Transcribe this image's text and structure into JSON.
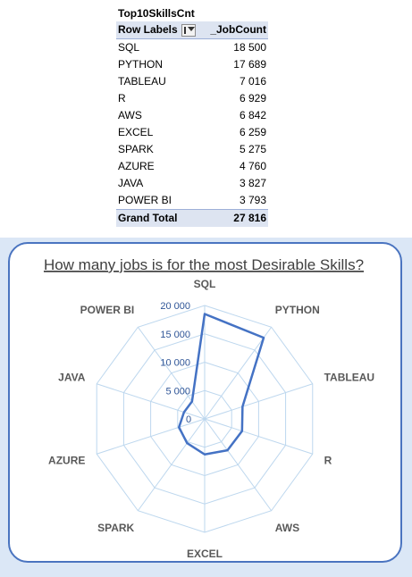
{
  "pivot": {
    "title": "Top10SkillsCnt",
    "header_labels": "Row Labels",
    "header_count": "_JobCount",
    "rows": [
      {
        "label": "SQL",
        "value": "18 500"
      },
      {
        "label": "PYTHON",
        "value": "17 689"
      },
      {
        "label": "TABLEAU",
        "value": "7 016"
      },
      {
        "label": "R",
        "value": "6 929"
      },
      {
        "label": "AWS",
        "value": "6 842"
      },
      {
        "label": "EXCEL",
        "value": "6 259"
      },
      {
        "label": "SPARK",
        "value": "5 275"
      },
      {
        "label": "AZURE",
        "value": "4 760"
      },
      {
        "label": "JAVA",
        "value": "3 827"
      },
      {
        "label": "POWER BI",
        "value": "3 793"
      }
    ],
    "total_label": "Grand Total",
    "total_value": "27 816"
  },
  "chart_data": {
    "type": "radar",
    "title": "How many jobs is for the most Desirable Skills?",
    "categories": [
      "SQL",
      "PYTHON",
      "TABLEAU",
      "R",
      "AWS",
      "EXCEL",
      "SPARK",
      "AZURE",
      "JAVA",
      "POWER BI"
    ],
    "values": [
      18500,
      17689,
      7016,
      6929,
      6842,
      6259,
      5275,
      4760,
      3827,
      3793
    ],
    "rlim": [
      0,
      20000
    ],
    "ticks": [
      0,
      5000,
      10000,
      15000,
      20000
    ],
    "tick_labels": [
      "0",
      "5 000",
      "10 000",
      "15 000",
      "20 000"
    ],
    "grid": true,
    "legend": "none",
    "colors": {
      "series": "#4472c4",
      "grid": "#bdd7ee",
      "tick_text": "#2f5597",
      "label_text": "#595959"
    }
  }
}
